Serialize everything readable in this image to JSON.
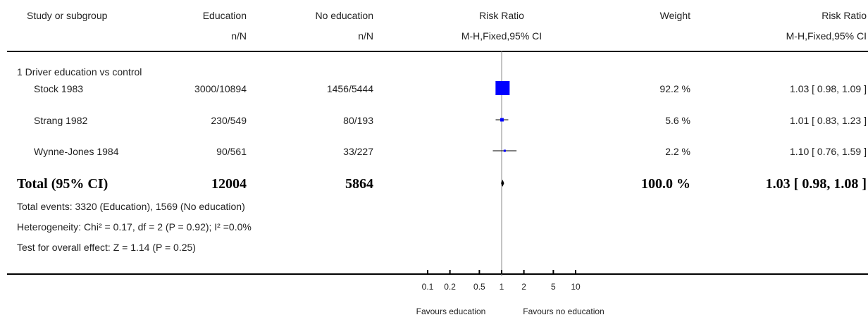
{
  "header": {
    "col_study": "Study or subgroup",
    "col_exp": "Education",
    "col_exp_sub": "n/N",
    "col_ctrl": "No education",
    "col_ctrl_sub": "n/N",
    "col_plot": "Risk Ratio",
    "col_plot_sub": "M-H,Fixed,95% CI",
    "col_weight": "Weight",
    "col_rr": "Risk Ratio",
    "col_rr_sub": "M-H,Fixed,95% CI"
  },
  "subgroup_label": "1 Driver education vs control",
  "footer": {
    "events": "Total events: 3320 (Education), 1569 (No education)",
    "heterogeneity": "Heterogeneity: Chi² = 0.17, df = 2 (P = 0.92); I² =0.0%",
    "overall": "Test for overall effect: Z = 1.14 (P = 0.25)",
    "favours_left": "Favours education",
    "favours_right": "Favours no education"
  },
  "chart_data": {
    "type": "forest",
    "scale": "log",
    "xlim": [
      0.1,
      10
    ],
    "ticks": [
      0.1,
      0.2,
      0.5,
      1,
      2,
      5,
      10
    ],
    "tick_labels": [
      "0.1",
      "0.2",
      "0.5",
      "1",
      "2",
      "5",
      "10"
    ],
    "marker_color": "#0000ff",
    "studies": [
      {
        "name": "Stock 1983",
        "exp": "3000/10894",
        "ctrl": "1456/5444",
        "weight": 92.2,
        "weight_label": "92.2 %",
        "rr": 1.03,
        "lo": 0.98,
        "hi": 1.09,
        "rr_label": "1.03 [ 0.98, 1.09 ]"
      },
      {
        "name": "Strang 1982",
        "exp": "230/549",
        "ctrl": "80/193",
        "weight": 5.6,
        "weight_label": "5.6 %",
        "rr": 1.01,
        "lo": 0.83,
        "hi": 1.23,
        "rr_label": "1.01 [ 0.83, 1.23 ]"
      },
      {
        "name": "Wynne-Jones 1984",
        "exp": "90/561",
        "ctrl": "33/227",
        "weight": 2.2,
        "weight_label": "2.2 %",
        "rr": 1.1,
        "lo": 0.76,
        "hi": 1.59,
        "rr_label": "1.10 [ 0.76, 1.59 ]"
      }
    ],
    "total": {
      "name": "Total (95% CI)",
      "exp": "12004",
      "ctrl": "5864",
      "weight_label": "100.0 %",
      "rr": 1.03,
      "lo": 0.98,
      "hi": 1.08,
      "rr_label": "1.03 [ 0.98, 1.08 ]"
    }
  }
}
